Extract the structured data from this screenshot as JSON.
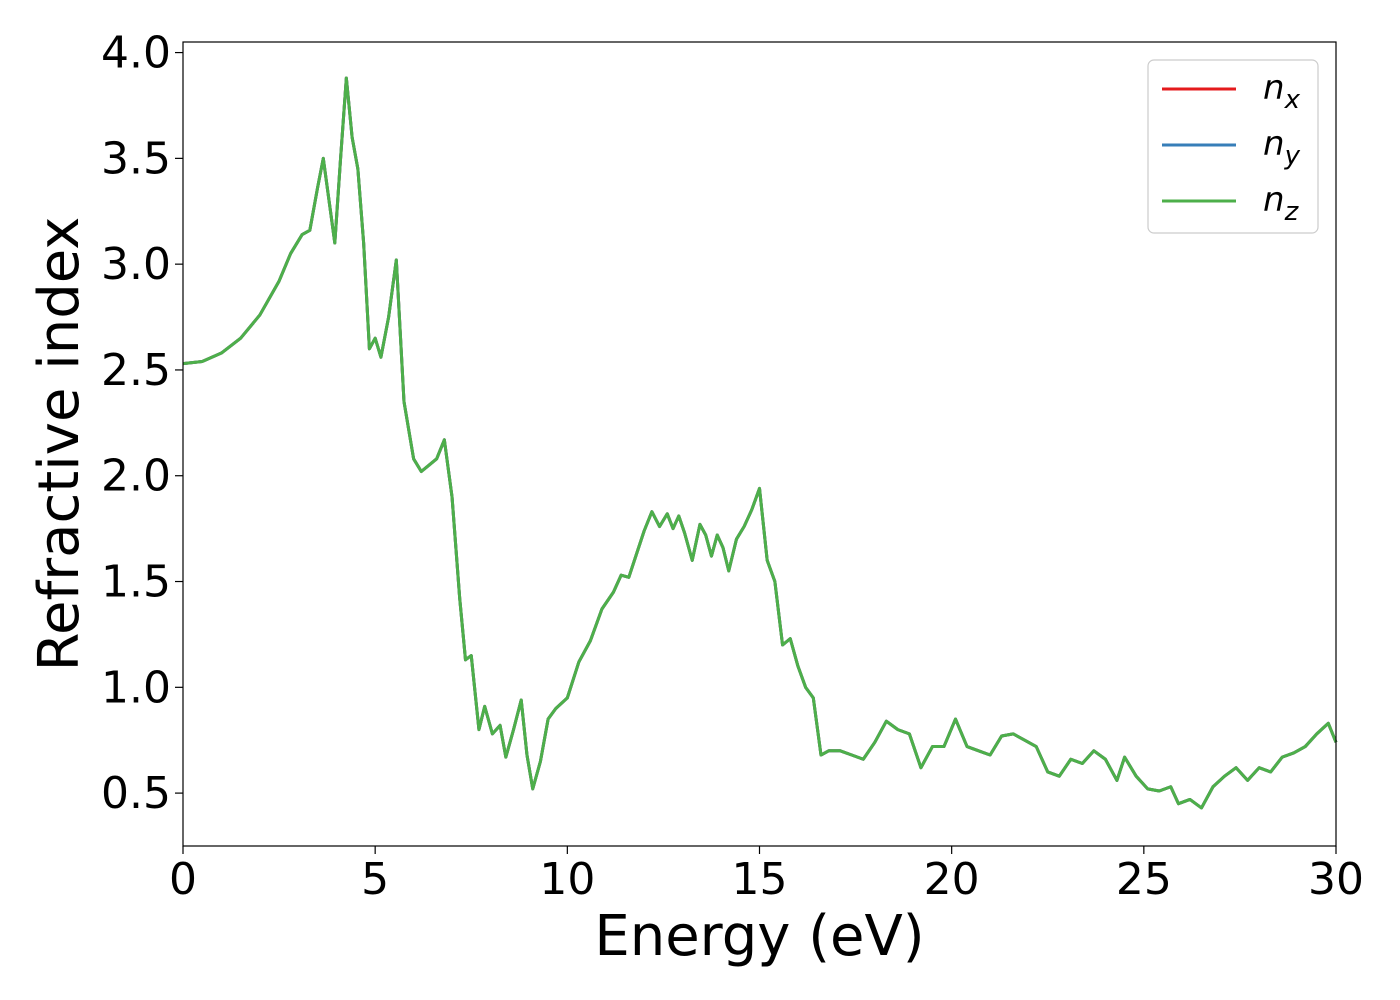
{
  "chart_data": {
    "type": "line",
    "title": "",
    "xlabel": "Energy (eV)",
    "ylabel": "Refractive index",
    "xlim": [
      0,
      30
    ],
    "ylim": [
      0.25,
      4.05
    ],
    "x_ticks": [
      0,
      5,
      10,
      15,
      20,
      25,
      30
    ],
    "y_ticks": [
      0.5,
      1.0,
      1.5,
      2.0,
      2.5,
      3.0,
      3.5,
      4.0
    ],
    "x_tick_labels": [
      "0",
      "5",
      "10",
      "15",
      "20",
      "25",
      "30"
    ],
    "y_tick_labels": [
      "0.5",
      "1.0",
      "1.5",
      "2.0",
      "2.5",
      "3.0",
      "3.5",
      "4.0"
    ],
    "grid": false,
    "legend": {
      "placement": "top-right"
    },
    "series": [
      {
        "name": "n_x",
        "label_base": "n",
        "label_sub": "x",
        "color": "#e41a1c",
        "uses_shared_values": true
      },
      {
        "name": "n_y",
        "label_base": "n",
        "label_sub": "y",
        "color": "#377eb8",
        "uses_shared_values": true
      },
      {
        "name": "n_z",
        "label_base": "n",
        "label_sub": "z",
        "color": "#4daf4a",
        "uses_shared_values": true
      }
    ],
    "x": [
      0,
      0.5,
      1,
      1.5,
      2,
      2.5,
      2.8,
      3.1,
      3.3,
      3.5,
      3.65,
      3.8,
      3.95,
      4.1,
      4.25,
      4.4,
      4.55,
      4.7,
      4.85,
      5.0,
      5.15,
      5.35,
      5.55,
      5.75,
      6.0,
      6.2,
      6.4,
      6.6,
      6.8,
      7.0,
      7.2,
      7.35,
      7.5,
      7.7,
      7.85,
      8.05,
      8.25,
      8.4,
      8.6,
      8.8,
      8.95,
      9.1,
      9.3,
      9.5,
      9.7,
      10.0,
      10.3,
      10.6,
      10.9,
      11.2,
      11.4,
      11.6,
      11.8,
      12.0,
      12.2,
      12.4,
      12.6,
      12.75,
      12.9,
      13.05,
      13.25,
      13.45,
      13.6,
      13.75,
      13.9,
      14.05,
      14.2,
      14.4,
      14.6,
      14.8,
      15.0,
      15.2,
      15.4,
      15.6,
      15.8,
      16.0,
      16.2,
      16.4,
      16.6,
      16.8,
      17.1,
      17.4,
      17.7,
      18.0,
      18.3,
      18.6,
      18.9,
      19.2,
      19.5,
      19.8,
      20.1,
      20.4,
      20.7,
      21.0,
      21.3,
      21.6,
      21.9,
      22.2,
      22.5,
      22.8,
      23.1,
      23.4,
      23.7,
      24.0,
      24.3,
      24.5,
      24.8,
      25.1,
      25.4,
      25.7,
      25.9,
      26.2,
      26.5,
      26.8,
      27.1,
      27.4,
      27.7,
      28.0,
      28.3,
      28.6,
      28.9,
      29.2,
      29.5,
      29.8,
      30.0
    ],
    "values": [
      2.53,
      2.54,
      2.58,
      2.65,
      2.76,
      2.92,
      3.05,
      3.14,
      3.16,
      3.36,
      3.5,
      3.3,
      3.1,
      3.5,
      3.88,
      3.6,
      3.45,
      3.1,
      2.6,
      2.65,
      2.56,
      2.75,
      3.02,
      2.35,
      2.08,
      2.02,
      2.05,
      2.08,
      2.17,
      1.9,
      1.42,
      1.13,
      1.15,
      0.8,
      0.91,
      0.78,
      0.82,
      0.67,
      0.8,
      0.94,
      0.68,
      0.52,
      0.65,
      0.85,
      0.9,
      0.95,
      1.12,
      1.22,
      1.37,
      1.45,
      1.53,
      1.52,
      1.63,
      1.74,
      1.83,
      1.76,
      1.82,
      1.75,
      1.81,
      1.73,
      1.6,
      1.77,
      1.72,
      1.62,
      1.72,
      1.66,
      1.55,
      1.7,
      1.76,
      1.84,
      1.94,
      1.6,
      1.5,
      1.2,
      1.23,
      1.1,
      1.0,
      0.95,
      0.68,
      0.7,
      0.7,
      0.68,
      0.66,
      0.74,
      0.84,
      0.8,
      0.78,
      0.62,
      0.72,
      0.72,
      0.85,
      0.72,
      0.7,
      0.68,
      0.77,
      0.78,
      0.75,
      0.72,
      0.6,
      0.58,
      0.66,
      0.64,
      0.7,
      0.66,
      0.56,
      0.67,
      0.58,
      0.52,
      0.51,
      0.53,
      0.45,
      0.47,
      0.43,
      0.53,
      0.58,
      0.62,
      0.56,
      0.62,
      0.6,
      0.67,
      0.69,
      0.72,
      0.78,
      0.83,
      0.74
    ]
  }
}
